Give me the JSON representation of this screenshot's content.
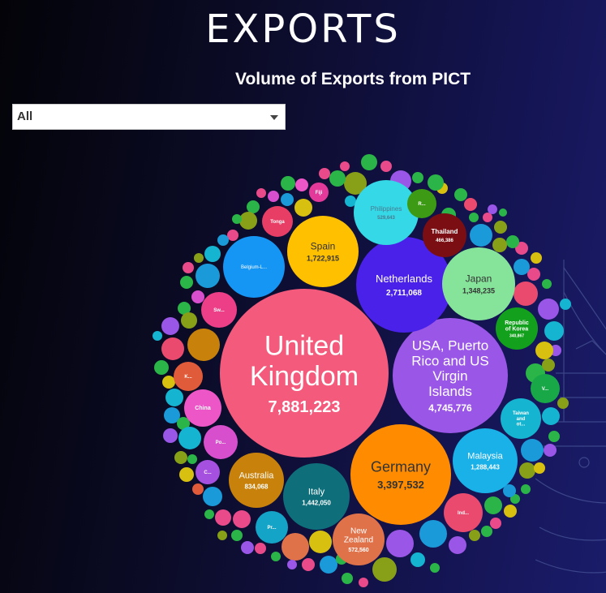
{
  "header": {
    "title": "EXPORTS",
    "subtitle": "Volume of Exports from PICT"
  },
  "filter": {
    "selected": "All"
  },
  "chart_data": {
    "type": "bubble",
    "title": "Volume of Exports from PICT",
    "bubbles": [
      {
        "name": "United Kingdom",
        "value": 7881223,
        "label_lines": [
          "United",
          "Kingdom"
        ],
        "value_label": "7,881,223",
        "color": "#f45a7b",
        "text": "#ffffff"
      },
      {
        "name": "USA, Puerto Rico and US Virgin Islands",
        "value": 4745776,
        "label_lines": [
          "USA, Puerto",
          "Rico and US",
          "Virgin",
          "Islands"
        ],
        "value_label": "4,745,776",
        "color": "#9a56e6",
        "text": "#ffffff"
      },
      {
        "name": "Germany",
        "value": 3397532,
        "label_lines": [
          "Germany"
        ],
        "value_label": "3,397,532",
        "color": "#ff8c00",
        "text": "#333333"
      },
      {
        "name": "Netherlands",
        "value": 2711068,
        "label_lines": [
          "Netherlands"
        ],
        "value_label": "2,711,068",
        "color": "#4a21e8",
        "text": "#ffffff"
      },
      {
        "name": "Spain",
        "value": 1722915,
        "label_lines": [
          "Spain"
        ],
        "value_label": "1,722,915",
        "color": "#ffc000",
        "text": "#333333"
      },
      {
        "name": "Italy",
        "value": 1442050,
        "label_lines": [
          "Italy"
        ],
        "value_label": "1,442,050",
        "color": "#0e6f7a",
        "text": "#ffffff"
      },
      {
        "name": "Japan",
        "value": 1348235,
        "label_lines": [
          "Japan"
        ],
        "value_label": "1,348,235",
        "color": "#86e49a",
        "text": "#333333"
      },
      {
        "name": "Malaysia",
        "value": 1288443,
        "label_lines": [
          "Malaysia"
        ],
        "value_label": "1,288,443",
        "color": "#1ab0e8",
        "text": "#ffffff"
      },
      {
        "name": "Australia",
        "value": 834068,
        "label_lines": [
          "Australia"
        ],
        "value_label": "834,068",
        "color": "#c8820c",
        "text": "#ffffff"
      },
      {
        "name": "New Zealand",
        "value": 572560,
        "label_lines": [
          "New",
          "Zealand"
        ],
        "value_label": "572,560",
        "color": "#e0724a",
        "text": "#ffffff"
      },
      {
        "name": "Philippines",
        "value": 529643,
        "label_lines": [
          "Philippines"
        ],
        "value_label": "529,643",
        "color": "#35d8e6",
        "text": "#4a7a90"
      },
      {
        "name": "Thailand",
        "value": 466386,
        "label_lines": [
          "Thailand"
        ],
        "value_label": "466,386",
        "color": "#7a0e12",
        "text": "#ffffff"
      },
      {
        "name": "Republic of Korea",
        "value": 340867,
        "label_lines": [
          "Republic",
          "of Korea"
        ],
        "value_label": "340,867",
        "color": "#13a01c",
        "text": "#ffffff"
      },
      {
        "name": "Belgium-L...",
        "value": null,
        "label_lines": [
          "Belgium-L..."
        ],
        "value_label": "",
        "color": "#1696f4",
        "text": "#ffffff"
      },
      {
        "name": "Taiwan and ot...",
        "value": null,
        "label_lines": [
          "Taiwan",
          "and",
          "ot..."
        ],
        "value_label": "",
        "color": "#15b4d0",
        "text": "#ffffff"
      },
      {
        "name": "China",
        "value": null,
        "label_lines": [
          "China"
        ],
        "value_label": "",
        "color": "#ec56c6",
        "text": "#ffffff"
      },
      {
        "name": "Sw...",
        "value": null,
        "label_lines": [
          "Sw..."
        ],
        "value_label": "",
        "color": "#ec3f88",
        "text": "#ffffff"
      },
      {
        "name": "Ind...",
        "value": null,
        "label_lines": [
          "Ind..."
        ],
        "value_label": "",
        "color": "#ea4a6e",
        "text": "#ffffff"
      },
      {
        "name": "Po...",
        "value": null,
        "label_lines": [
          "Po..."
        ],
        "value_label": "",
        "color": "#d84fcd",
        "text": "#ffffff"
      },
      {
        "name": "Tonga",
        "value": null,
        "label_lines": [
          "Tonga"
        ],
        "value_label": "",
        "color": "#e83e66",
        "text": "#ffffff"
      },
      {
        "name": "K...",
        "value": null,
        "label_lines": [
          "K..."
        ],
        "value_label": "",
        "color": "#e05b3a",
        "text": "#ffffff"
      },
      {
        "name": "C...",
        "value": null,
        "label_lines": [
          "C..."
        ],
        "value_label": "",
        "color": "#a550df",
        "text": "#ffffff"
      },
      {
        "name": "Fiji",
        "value": null,
        "label_lines": [
          "Fiji"
        ],
        "value_label": "",
        "color": "#e2399a",
        "text": "#ffffff"
      },
      {
        "name": "R...",
        "value": null,
        "label_lines": [
          "R..."
        ],
        "value_label": "",
        "color": "#3c9a14",
        "text": "#ffffff"
      },
      {
        "name": "V...",
        "value": null,
        "label_lines": [
          "V..."
        ],
        "value_label": "",
        "color": "#18a848",
        "text": "#ffffff"
      },
      {
        "name": "Pr...",
        "value": null,
        "label_lines": [
          "Pr..."
        ],
        "value_label": "",
        "color": "#14a4c8",
        "text": "#ffffff"
      }
    ]
  }
}
